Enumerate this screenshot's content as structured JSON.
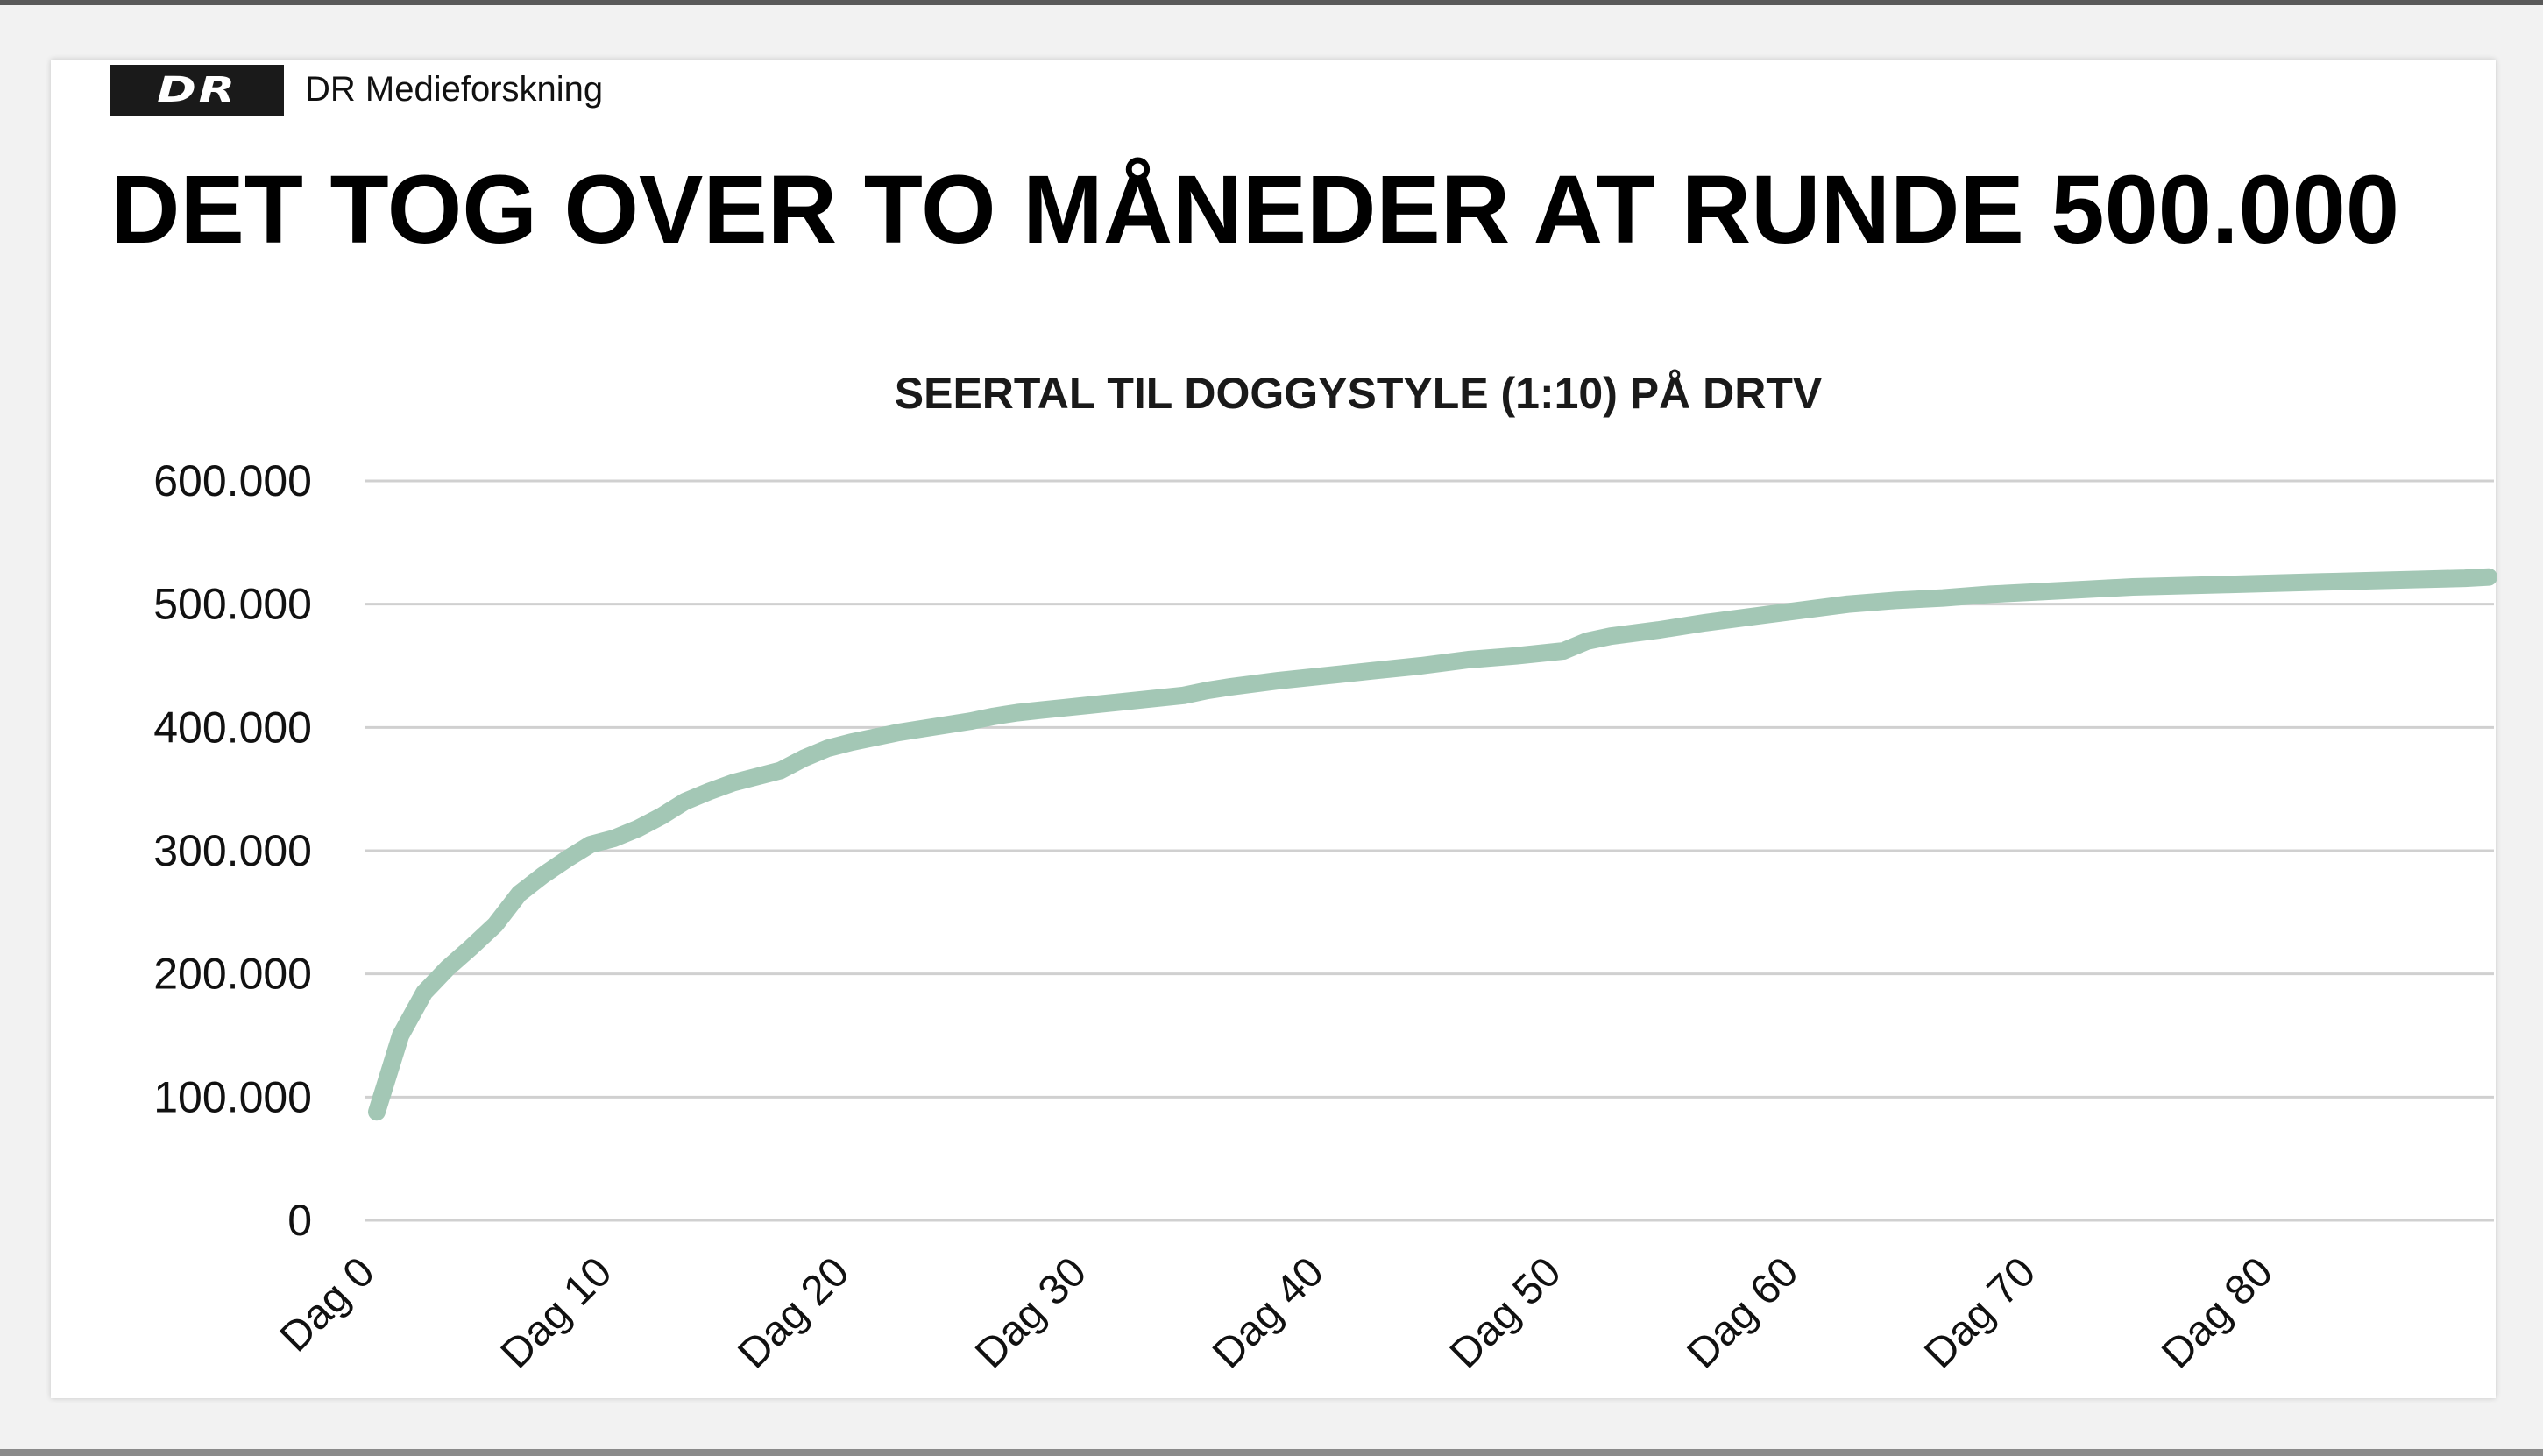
{
  "header": {
    "logo_text": "DR",
    "brand": "DR Medieforskning",
    "headline": "DET TOG OVER TO MÅNEDER AT RUNDE 500.000"
  },
  "colors": {
    "line": "#a3c7b5",
    "grid": "#d0d0d0",
    "text": "#000000"
  },
  "chart_data": {
    "type": "line",
    "title": "SEERTAL TIL DOGGYSTYLE (1:10) PÅ DRTV",
    "xlabel": "",
    "ylabel": "",
    "ylim": [
      0,
      600000
    ],
    "yticks": [
      0,
      100000,
      200000,
      300000,
      400000,
      500000,
      600000
    ],
    "ytick_labels": [
      "0",
      "100.000",
      "200.000",
      "300.000",
      "400.000",
      "500.000",
      "600.000"
    ],
    "xlim": [
      0,
      89
    ],
    "xticks": [
      0,
      10,
      20,
      30,
      40,
      50,
      60,
      70,
      80
    ],
    "xtick_labels": [
      "Dag 0",
      "Dag 10",
      "Dag 20",
      "Dag 30",
      "Dag 40",
      "Dag 50",
      "Dag 60",
      "Dag 70",
      "Dag 80"
    ],
    "grid": true,
    "legend": "none",
    "series": [
      {
        "x": [
          0,
          1,
          2,
          3,
          4,
          5,
          6,
          7,
          8,
          9,
          10,
          11,
          12,
          13,
          14,
          15,
          16,
          17,
          18,
          19,
          20,
          21,
          22,
          23,
          24,
          25,
          26,
          27,
          28,
          29,
          30,
          32,
          34,
          35,
          36,
          38,
          40,
          42,
          44,
          46,
          48,
          50,
          51,
          52,
          54,
          56,
          58,
          60,
          62,
          64,
          66,
          68,
          70,
          72,
          74,
          76,
          78,
          80,
          82,
          84,
          86,
          88,
          89
        ],
        "values": [
          88000,
          150000,
          185000,
          205000,
          222000,
          240000,
          265000,
          280000,
          293000,
          305000,
          310000,
          318000,
          328000,
          340000,
          348000,
          355000,
          360000,
          365000,
          375000,
          383000,
          388000,
          392000,
          396000,
          399000,
          402000,
          405000,
          409000,
          412000,
          414000,
          416000,
          418000,
          422000,
          426000,
          430000,
          433000,
          438000,
          442000,
          446000,
          450000,
          455000,
          458000,
          462000,
          470000,
          474000,
          479000,
          485000,
          490000,
          495000,
          500000,
          503000,
          505000,
          508000,
          510000,
          512000,
          514000,
          515000,
          516000,
          517000,
          518000,
          519000,
          520000,
          521000,
          522000
        ]
      }
    ]
  }
}
